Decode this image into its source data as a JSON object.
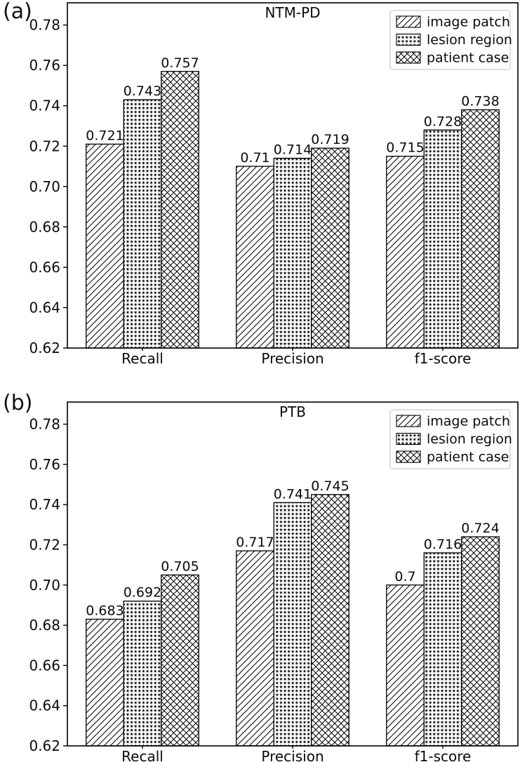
{
  "figures": [
    {
      "corner_label": "(a)"
    },
    {
      "corner_label": "(b)"
    }
  ],
  "colors": {
    "background": "#ffffff",
    "axes": "#000000",
    "bar_fill": "#ffffff",
    "bar_edge": "#000000",
    "hatch": "#000000",
    "text": "#0a0a0a",
    "legend_border": "#cccccc"
  },
  "chart_data": [
    {
      "type": "bar",
      "panel": "a",
      "title": "NTM-PD",
      "categories": [
        "Recall",
        "Precision",
        "f1-score"
      ],
      "series": [
        {
          "name": "image patch",
          "hatch": "diagonal-lines",
          "values": [
            0.721,
            0.71,
            0.715
          ],
          "labels": [
            "0.721",
            "0.71",
            "0.715"
          ]
        },
        {
          "name": "lesion region",
          "hatch": "stars",
          "values": [
            0.743,
            0.714,
            0.728
          ],
          "labels": [
            "0.743",
            "0.714",
            "0.728"
          ]
        },
        {
          "name": "patient case",
          "hatch": "crosshatch",
          "values": [
            0.757,
            0.719,
            0.738
          ],
          "labels": [
            "0.757",
            "0.719",
            "0.738"
          ]
        }
      ],
      "ylim": [
        0.62,
        0.791
      ],
      "yticks": [
        0.62,
        0.64,
        0.66,
        0.68,
        0.7,
        0.72,
        0.74,
        0.76,
        0.78
      ],
      "ytick_labels": [
        "0.62",
        "0.64",
        "0.66",
        "0.68",
        "0.70",
        "0.72",
        "0.74",
        "0.76",
        "0.78"
      ],
      "xlabel": "",
      "ylabel": "",
      "grid": false,
      "bar_value_labels": true,
      "legend": {
        "position": "upper right",
        "entries": [
          "image patch",
          "lesion region",
          "patient case"
        ]
      }
    },
    {
      "type": "bar",
      "panel": "b",
      "title": "PTB",
      "categories": [
        "Recall",
        "Precision",
        "f1-score"
      ],
      "series": [
        {
          "name": "image patch",
          "hatch": "diagonal-lines",
          "values": [
            0.683,
            0.717,
            0.7
          ],
          "labels": [
            "0.683",
            "0.717",
            "0.7"
          ]
        },
        {
          "name": "lesion region",
          "hatch": "stars",
          "values": [
            0.692,
            0.741,
            0.716
          ],
          "labels": [
            "0.692",
            "0.741",
            "0.716"
          ]
        },
        {
          "name": "patient case",
          "hatch": "crosshatch",
          "values": [
            0.705,
            0.745,
            0.724
          ],
          "labels": [
            "0.705",
            "0.745",
            "0.724"
          ]
        }
      ],
      "ylim": [
        0.62,
        0.791
      ],
      "yticks": [
        0.62,
        0.64,
        0.66,
        0.68,
        0.7,
        0.72,
        0.74,
        0.76,
        0.78
      ],
      "ytick_labels": [
        "0.62",
        "0.64",
        "0.66",
        "0.68",
        "0.70",
        "0.72",
        "0.74",
        "0.76",
        "0.78"
      ],
      "xlabel": "",
      "ylabel": "",
      "grid": false,
      "bar_value_labels": true,
      "legend": {
        "position": "upper right",
        "entries": [
          "image patch",
          "lesion region",
          "patient case"
        ]
      }
    }
  ]
}
